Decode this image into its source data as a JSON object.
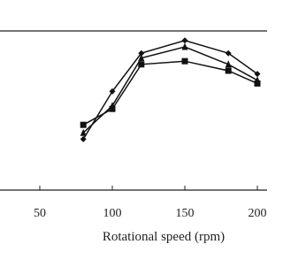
{
  "chart_data": {
    "type": "line",
    "x_label": "Rotational speed (rpm)",
    "x": [
      80,
      100,
      120,
      150,
      180,
      200
    ],
    "series": [
      {
        "color": "#111111",
        "marker": "diamond",
        "values": [
          32,
          62,
          86,
          94,
          86,
          73
        ]
      },
      {
        "color": "#111111",
        "marker": "triangle",
        "values": [
          36,
          53,
          83,
          90,
          79,
          69
        ]
      },
      {
        "color": "#111111",
        "marker": "square",
        "values": [
          41,
          51,
          79,
          81,
          75,
          67
        ]
      }
    ],
    "xlim": [
      30,
      210
    ],
    "xticks": [
      50,
      100,
      150,
      200
    ],
    "ylim": [
      0,
      100
    ]
  }
}
